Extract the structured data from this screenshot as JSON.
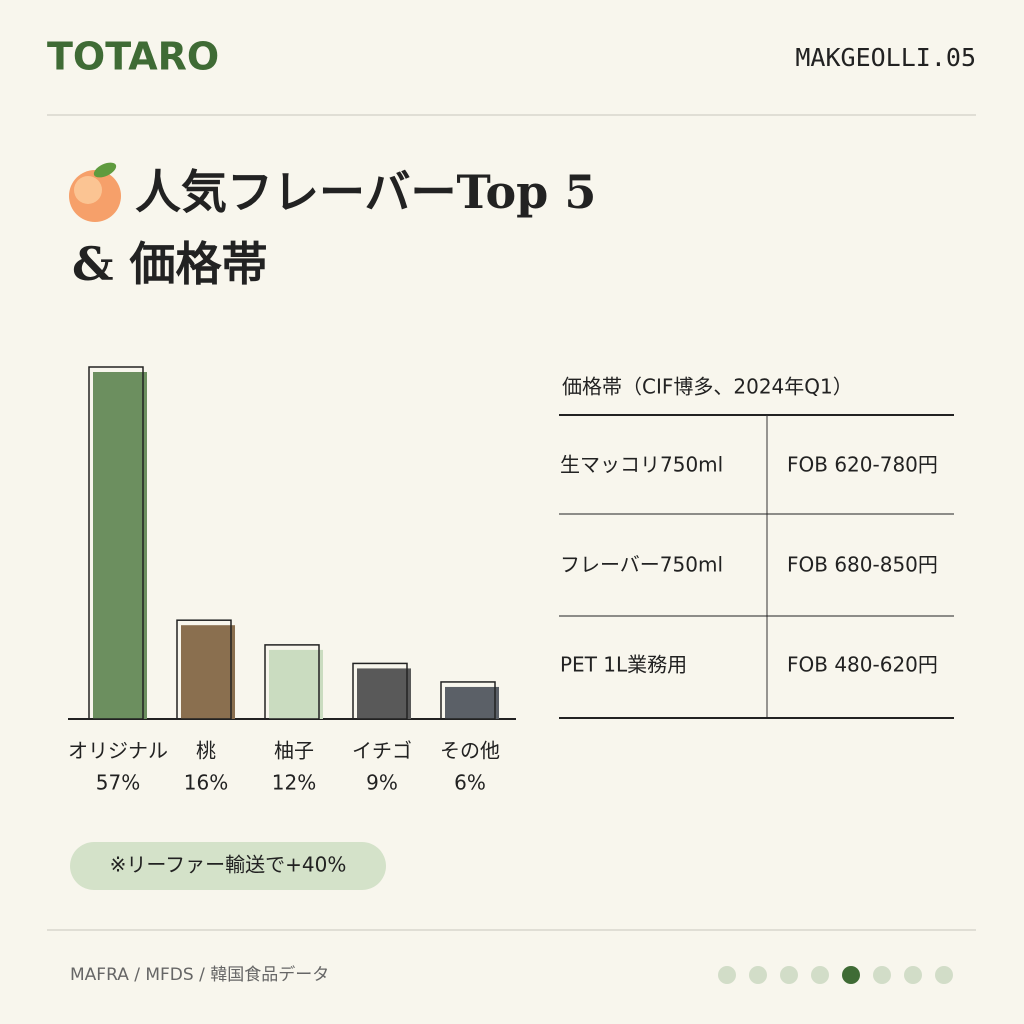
{
  "header": {
    "brand": "TOTARO",
    "code": "MAKGEOLLI.05"
  },
  "title": [
    "人気フレーバーTop 5",
    "& 価格帯"
  ],
  "chart_data": {
    "type": "bar",
    "categories": [
      "オリジナル",
      "桃",
      "柚子",
      "イチゴ",
      "その他"
    ],
    "values": [
      57,
      16,
      12,
      9,
      6
    ],
    "value_labels": [
      "57%",
      "16%",
      "12%",
      "9%",
      "6%"
    ],
    "colors": [
      "#6c8f5f",
      "#8a6f4f",
      "#cadcc0",
      "#595959",
      "#5b6067"
    ]
  },
  "table": {
    "title": "価格帯（CIF博多、2024年Q1）",
    "rows": [
      [
        "生マッコリ750ml",
        "FOB 620-780円"
      ],
      [
        "フレーバー750ml",
        "FOB 680-850円"
      ],
      [
        "PET 1L業務用",
        "FOB 480-620円"
      ]
    ]
  },
  "note": "※リーファー輸送で+40%",
  "footer": {
    "source": "MAFRA / MFDS / 韓国食品データ"
  }
}
